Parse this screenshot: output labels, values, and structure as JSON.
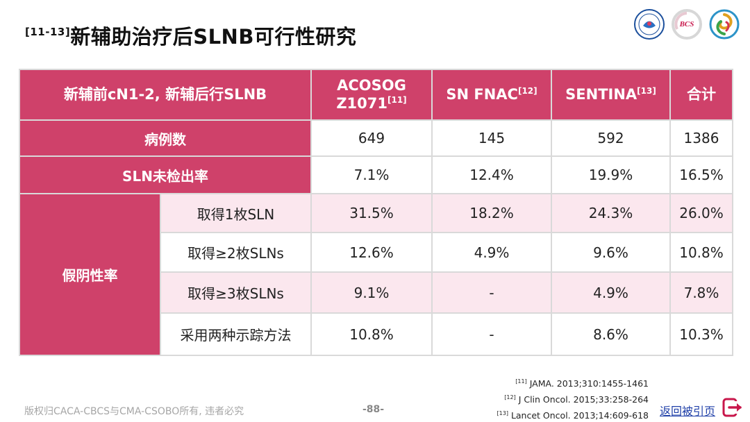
{
  "title": {
    "ref": "[11-13]",
    "text": "新辅助治疗后SLNB可行性研究"
  },
  "logos": [
    {
      "name": "caca-logo",
      "icon": "circular-seal-icon",
      "color": "#1b4f9c"
    },
    {
      "name": "bcs-logo",
      "text": "BCS",
      "color": "#c8174b"
    },
    {
      "name": "cso-logo",
      "icon": "swirl-icon",
      "color": "#2c93c8"
    }
  ],
  "watermark": "CACA-CBCS",
  "table": {
    "header": {
      "first": "新辅前cN1-2, 新辅后行SLNB",
      "col1": {
        "line1": "ACOSOG",
        "line2": "Z1071",
        "ref": "[11]"
      },
      "col2": {
        "text": "SN FNAC",
        "ref": "[12]"
      },
      "col3": {
        "text": "SENTINA",
        "ref": "[13]"
      },
      "col4": "合计"
    },
    "cases": {
      "label": "病例数",
      "values": [
        "649",
        "145",
        "592",
        "1386"
      ]
    },
    "sln_missed": {
      "label": "SLN未检出率",
      "values": [
        "7.1%",
        "12.4%",
        "19.9%",
        "16.5%"
      ]
    },
    "fnr": {
      "label": "假阴性率",
      "rows": [
        {
          "label": "取得1枚SLN",
          "values": [
            "31.5%",
            "18.2%",
            "24.3%",
            "26.0%"
          ]
        },
        {
          "label": "取得≥2枚SLNs",
          "values": [
            "12.6%",
            "4.9%",
            "9.6%",
            "10.8%"
          ]
        },
        {
          "label": "取得≥3枚SLNs",
          "values": [
            "9.1%",
            "-",
            "4.9%",
            "7.8%"
          ]
        },
        {
          "label": "采用两种示踪方法",
          "values": [
            "10.8%",
            "-",
            "8.6%",
            "10.3%"
          ]
        }
      ]
    }
  },
  "colors": {
    "header": "#cf416a",
    "pink_row": "#fbe7ee",
    "link": "#1f3fa8"
  },
  "references": [
    {
      "num": "[11]",
      "text": "JAMA. 2013;310:1455-1461"
    },
    {
      "num": "[12]",
      "text": "J Clin Oncol. 2015;33:258-264"
    },
    {
      "num": "[13]",
      "text": "Lancet Oncol. 2013;14:609-618"
    }
  ],
  "footer": {
    "copyright": "版权归CACA-CBCS与CMA-CSOBO所有, 违者必究",
    "page": "-88-",
    "back_link": "返回被引页",
    "back_icon": "return-arrow-icon"
  }
}
